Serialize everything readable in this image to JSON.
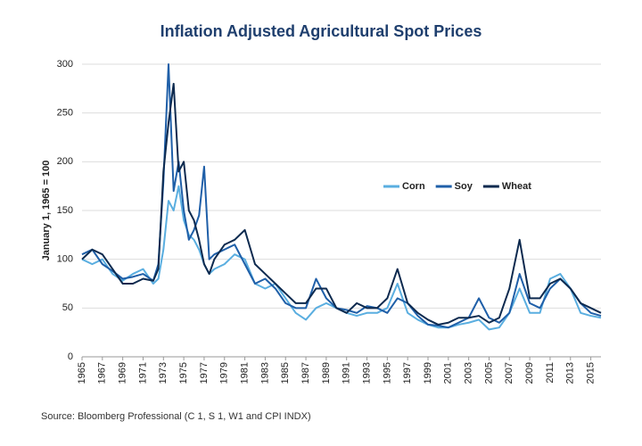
{
  "chart_data": {
    "type": "line",
    "title": "Inflation Adjusted Agricultural Spot Prices",
    "y_label": "January 1, 1965 = 100",
    "source": "Source: Bloomberg Professional (C 1, S 1, W1 and CPI INDX)",
    "x": [
      1965,
      1966,
      1967,
      1968,
      1969,
      1970,
      1971,
      1972,
      1972.5,
      1973,
      1973.5,
      1974,
      1974.5,
      1975,
      1975.5,
      1976,
      1976.5,
      1977,
      1977.5,
      1978,
      1979,
      1980,
      1981,
      1982,
      1983,
      1984,
      1985,
      1986,
      1987,
      1988,
      1989,
      1990,
      1991,
      1992,
      1993,
      1994,
      1995,
      1996,
      1997,
      1998,
      1999,
      2000,
      2001,
      2002,
      2003,
      2004,
      2005,
      2006,
      2007,
      2008,
      2009,
      2010,
      2011,
      2012,
      2013,
      2014,
      2015,
      2016
    ],
    "series": [
      {
        "name": "Corn",
        "color": "#5aaee0",
        "values": [
          100,
          95,
          100,
          85,
          78,
          85,
          90,
          75,
          80,
          110,
          160,
          150,
          175,
          140,
          125,
          120,
          110,
          95,
          85,
          90,
          95,
          105,
          100,
          75,
          70,
          75,
          60,
          45,
          38,
          50,
          55,
          50,
          45,
          42,
          45,
          45,
          50,
          75,
          45,
          38,
          33,
          30,
          30,
          33,
          35,
          38,
          28,
          30,
          45,
          70,
          45,
          45,
          80,
          85,
          70,
          45,
          42,
          40
        ]
      },
      {
        "name": "Soy",
        "color": "#1f5fa8",
        "values": [
          105,
          110,
          95,
          88,
          80,
          82,
          85,
          78,
          95,
          180,
          300,
          170,
          200,
          150,
          120,
          130,
          145,
          195,
          100,
          105,
          110,
          115,
          95,
          75,
          80,
          70,
          55,
          50,
          50,
          80,
          60,
          50,
          48,
          45,
          52,
          50,
          45,
          60,
          55,
          42,
          33,
          32,
          30,
          35,
          40,
          60,
          40,
          35,
          45,
          85,
          55,
          50,
          70,
          80,
          70,
          55,
          45,
          42
        ]
      },
      {
        "name": "Wheat",
        "color": "#0d2a4f",
        "values": [
          100,
          110,
          105,
          90,
          75,
          75,
          80,
          78,
          90,
          190,
          240,
          280,
          190,
          200,
          150,
          140,
          120,
          95,
          85,
          100,
          115,
          120,
          130,
          95,
          85,
          75,
          65,
          55,
          55,
          70,
          70,
          50,
          45,
          55,
          50,
          50,
          60,
          90,
          55,
          45,
          38,
          33,
          35,
          40,
          40,
          42,
          35,
          40,
          70,
          120,
          60,
          60,
          75,
          80,
          70,
          55,
          50,
          45
        ]
      }
    ],
    "xlim": [
      1965,
      2016
    ],
    "xticks": [
      1965,
      1967,
      1969,
      1971,
      1973,
      1975,
      1977,
      1979,
      1981,
      1983,
      1985,
      1987,
      1989,
      1991,
      1993,
      1995,
      1997,
      1999,
      2001,
      2003,
      2005,
      2007,
      2009,
      2011,
      2013,
      2015
    ],
    "ylim": [
      0,
      300
    ],
    "yticks": [
      0,
      50,
      100,
      150,
      200,
      250,
      300
    ],
    "grid": true
  }
}
